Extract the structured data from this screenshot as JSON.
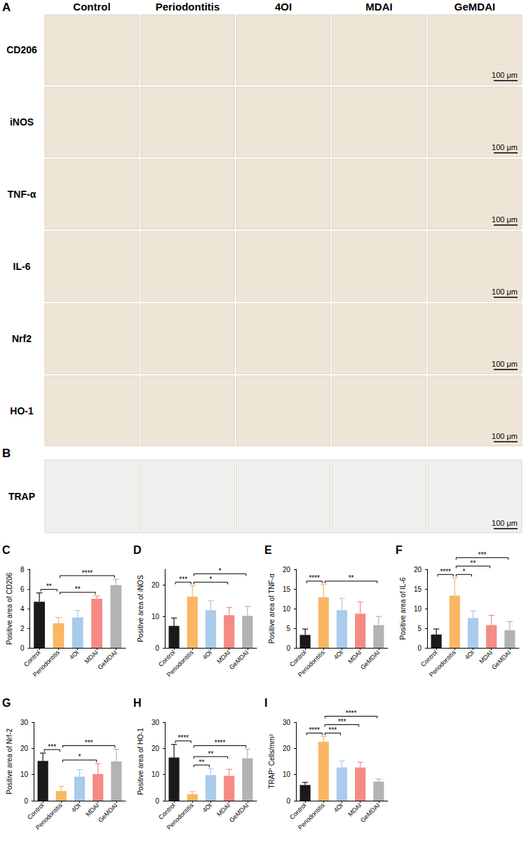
{
  "images": {
    "A": {
      "panel": "A",
      "columns": [
        "Control",
        "Periodontitis",
        "4OI",
        "MDAI",
        "GeMDAI"
      ],
      "rows": [
        "CD206",
        "iNOS",
        "TNF-α",
        "IL-6",
        "Nrf2",
        "HO-1"
      ],
      "scale_bar": "100 μm"
    },
    "B": {
      "panel": "B",
      "rows": [
        "TRAP"
      ],
      "scale_bar": "100 μm"
    }
  },
  "chart_data": [
    {
      "panel": "C",
      "type": "bar",
      "y_label": "Positive area of CD206",
      "categories": [
        "Control",
        "Periodontitis",
        "4OI",
        "MDAI",
        "GeMDAI"
      ],
      "values": [
        4.7,
        2.5,
        3.1,
        5.0,
        6.4
      ],
      "errors": [
        0.9,
        0.6,
        0.7,
        0.3,
        0.6
      ],
      "colors": [
        "#1a1a1a",
        "#f9b763",
        "#a9cbec",
        "#f48b85",
        "#b3b3b3"
      ],
      "ylim": [
        0,
        8
      ],
      "yticks": [
        0,
        2,
        4,
        6,
        8
      ],
      "grid": false,
      "comparisons": [
        {
          "pair": [
            "Control",
            "Periodontitis"
          ],
          "label": "**"
        },
        {
          "pair": [
            "Periodontitis",
            "MDAI"
          ],
          "label": "**"
        },
        {
          "pair": [
            "Periodontitis",
            "GeMDAI"
          ],
          "label": "****"
        }
      ]
    },
    {
      "panel": "D",
      "type": "bar",
      "y_label": "Positive area of iNOS",
      "categories": [
        "Control",
        "Periodontitis",
        "4OI",
        "MDAI",
        "GeMDAI"
      ],
      "values": [
        7.0,
        16.3,
        12.0,
        10.4,
        10.2
      ],
      "errors": [
        2.5,
        3.5,
        3.0,
        2.5,
        3.0
      ],
      "colors": [
        "#1a1a1a",
        "#f9b763",
        "#a9cbec",
        "#f48b85",
        "#b3b3b3"
      ],
      "ylim": [
        0,
        25
      ],
      "yticks": [
        0,
        10,
        20
      ],
      "grid": false,
      "comparisons": [
        {
          "pair": [
            "Control",
            "Periodontitis"
          ],
          "label": "***"
        },
        {
          "pair": [
            "Periodontitis",
            "MDAI"
          ],
          "label": "*"
        },
        {
          "pair": [
            "Periodontitis",
            "GeMDAI"
          ],
          "label": "*"
        }
      ]
    },
    {
      "panel": "E",
      "type": "bar",
      "y_label": "Positive area of TNF-α",
      "categories": [
        "Control",
        "Periodontitis",
        "4OI",
        "MDAI",
        "GeMDAI"
      ],
      "values": [
        3.3,
        12.9,
        9.6,
        8.7,
        5.8
      ],
      "errors": [
        1.5,
        3.2,
        3.0,
        3.0,
        2.2
      ],
      "colors": [
        "#1a1a1a",
        "#f9b763",
        "#a9cbec",
        "#f48b85",
        "#b3b3b3"
      ],
      "ylim": [
        0,
        20
      ],
      "yticks": [
        0,
        5,
        10,
        15,
        20
      ],
      "grid": false,
      "comparisons": [
        {
          "pair": [
            "Control",
            "Periodontitis"
          ],
          "label": "****"
        },
        {
          "pair": [
            "Periodontitis",
            "GeMDAI"
          ],
          "label": "**"
        }
      ]
    },
    {
      "panel": "F",
      "type": "bar",
      "y_label": "Positive area of IL-6",
      "categories": [
        "Control",
        "Periodontitis",
        "4OI",
        "MDAI",
        "GeMDAI"
      ],
      "values": [
        3.4,
        13.3,
        7.6,
        5.8,
        4.5
      ],
      "errors": [
        1.4,
        4.5,
        1.8,
        2.5,
        2.2
      ],
      "colors": [
        "#1a1a1a",
        "#f9b763",
        "#a9cbec",
        "#f48b85",
        "#b3b3b3"
      ],
      "ylim": [
        0,
        20
      ],
      "yticks": [
        0,
        5,
        10,
        15,
        20
      ],
      "grid": false,
      "comparisons": [
        {
          "pair": [
            "Control",
            "Periodontitis"
          ],
          "label": "****"
        },
        {
          "pair": [
            "Periodontitis",
            "4OI"
          ],
          "label": "*"
        },
        {
          "pair": [
            "Periodontitis",
            "MDAI"
          ],
          "label": "**"
        },
        {
          "pair": [
            "Periodontitis",
            "GeMDAI"
          ],
          "label": "***"
        }
      ]
    },
    {
      "panel": "G",
      "type": "bar",
      "y_label": "Positive area of Nrf-2",
      "categories": [
        "Control",
        "Periodontitis",
        "4OI",
        "MDAI",
        "GeMDAI"
      ],
      "values": [
        15.2,
        3.7,
        9.2,
        10.2,
        15.0
      ],
      "errors": [
        3.0,
        1.8,
        2.7,
        4.0,
        4.7
      ],
      "colors": [
        "#1a1a1a",
        "#f9b763",
        "#a9cbec",
        "#f48b85",
        "#b3b3b3"
      ],
      "ylim": [
        0,
        30
      ],
      "yticks": [
        0,
        10,
        20,
        30
      ],
      "grid": false,
      "comparisons": [
        {
          "pair": [
            "Control",
            "Periodontitis"
          ],
          "label": "***"
        },
        {
          "pair": [
            "Periodontitis",
            "MDAI"
          ],
          "label": "*"
        },
        {
          "pair": [
            "Periodontitis",
            "GeMDAI"
          ],
          "label": "***"
        }
      ]
    },
    {
      "panel": "H",
      "type": "bar",
      "y_label": "Positive area of HO-1",
      "categories": [
        "Control",
        "Periodontitis",
        "4OI",
        "MDAI",
        "GeMDAI"
      ],
      "values": [
        16.5,
        2.5,
        9.8,
        9.5,
        16.2
      ],
      "errors": [
        5.0,
        1.0,
        2.5,
        2.5,
        3.5
      ],
      "colors": [
        "#1a1a1a",
        "#f9b763",
        "#a9cbec",
        "#f48b85",
        "#b3b3b3"
      ],
      "ylim": [
        0,
        30
      ],
      "yticks": [
        0,
        10,
        20,
        30
      ],
      "grid": false,
      "comparisons": [
        {
          "pair": [
            "Control",
            "Periodontitis"
          ],
          "label": "****"
        },
        {
          "pair": [
            "Periodontitis",
            "4OI"
          ],
          "label": "**"
        },
        {
          "pair": [
            "Periodontitis",
            "MDAI"
          ],
          "label": "**"
        },
        {
          "pair": [
            "Periodontitis",
            "GeMDAI"
          ],
          "label": "****"
        }
      ]
    },
    {
      "panel": "I",
      "type": "bar",
      "y_label": "TRAP⁺ Cells/mm³",
      "categories": [
        "Control",
        "Periodontitis",
        "4OI",
        "MDAI",
        "GeMDAI"
      ],
      "values": [
        6.0,
        22.5,
        12.7,
        12.7,
        7.3
      ],
      "errors": [
        1.0,
        2.0,
        2.5,
        2.0,
        1.0
      ],
      "colors": [
        "#1a1a1a",
        "#f9b763",
        "#a9cbec",
        "#f48b85",
        "#b3b3b3"
      ],
      "ylim": [
        0,
        30
      ],
      "yticks": [
        0,
        10,
        20,
        30
      ],
      "grid": false,
      "comparisons": [
        {
          "pair": [
            "Control",
            "Periodontitis"
          ],
          "label": "****"
        },
        {
          "pair": [
            "Periodontitis",
            "4OI"
          ],
          "label": "***"
        },
        {
          "pair": [
            "Periodontitis",
            "MDAI"
          ],
          "label": "***"
        },
        {
          "pair": [
            "Periodontitis",
            "GeMDAI"
          ],
          "label": "****"
        }
      ]
    }
  ]
}
